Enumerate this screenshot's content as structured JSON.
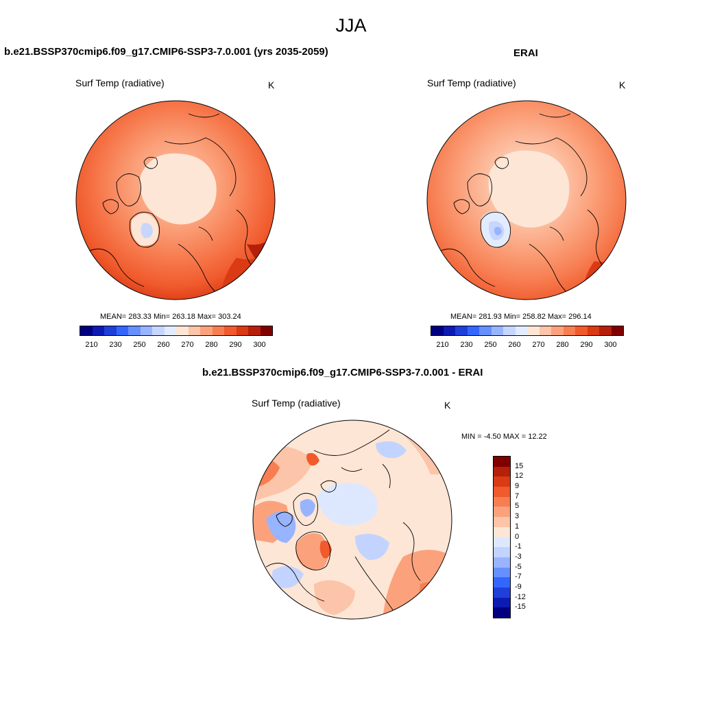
{
  "figure": {
    "season": "JJA"
  },
  "panels": {
    "model": {
      "title": "b.e21.BSSP370cmip6.f09_g17.CMIP6-SSP3-7.0.001 (yrs 2035-2059)",
      "variable": "Surf Temp (radiative)",
      "units": "K",
      "stats": "MEAN= 283.33  Min= 263.18  Max= 303.24",
      "mean": 283.33,
      "min": 263.18,
      "max": 303.24,
      "projection": "north polar stereographic"
    },
    "obs": {
      "title": "ERAI",
      "variable": "Surf Temp (radiative)",
      "units": "K",
      "stats": "MEAN= 281.93  Min= 258.82  Max= 296.14",
      "mean": 281.93,
      "min": 258.82,
      "max": 296.14,
      "projection": "north polar stereographic"
    },
    "diff": {
      "title": "b.e21.BSSP370cmip6.f09_g17.CMIP6-SSP3-7.0.001 - ERAI",
      "variable": "Surf Temp (radiative)",
      "units": "K",
      "stats": "MIN =  -4.50 MAX =  12.22",
      "min": -4.5,
      "max": 12.22,
      "projection": "north polar stereographic"
    }
  },
  "colorbars": {
    "absolute": {
      "orientation": "horizontal",
      "tick_labels": [
        "210",
        "230",
        "250",
        "260",
        "270",
        "280",
        "290",
        "300"
      ],
      "colors": [
        "#000080",
        "#0d1bb3",
        "#1f3fd9",
        "#3366ff",
        "#6690ff",
        "#99b4ff",
        "#c6d6ff",
        "#e3ecff",
        "#fde6d6",
        "#fcc4a8",
        "#fba27c",
        "#f77e52",
        "#f05a2c",
        "#da3a14",
        "#b5200a",
        "#800000"
      ]
    },
    "difference": {
      "orientation": "vertical",
      "tick_labels": [
        "15",
        "12",
        "9",
        "7",
        "5",
        "3",
        "1",
        "0",
        "-1",
        "-3",
        "-5",
        "-7",
        "-9",
        "-12",
        "-15"
      ],
      "colors": [
        "#800000",
        "#b5200a",
        "#da3a14",
        "#f05a2c",
        "#f77e52",
        "#fba27c",
        "#fcc4a8",
        "#fde6d6",
        "#dde8ff",
        "#c2d3ff",
        "#99b4ff",
        "#6690ff",
        "#3366ff",
        "#1f3fd9",
        "#0d1bb3",
        "#000080"
      ]
    }
  }
}
